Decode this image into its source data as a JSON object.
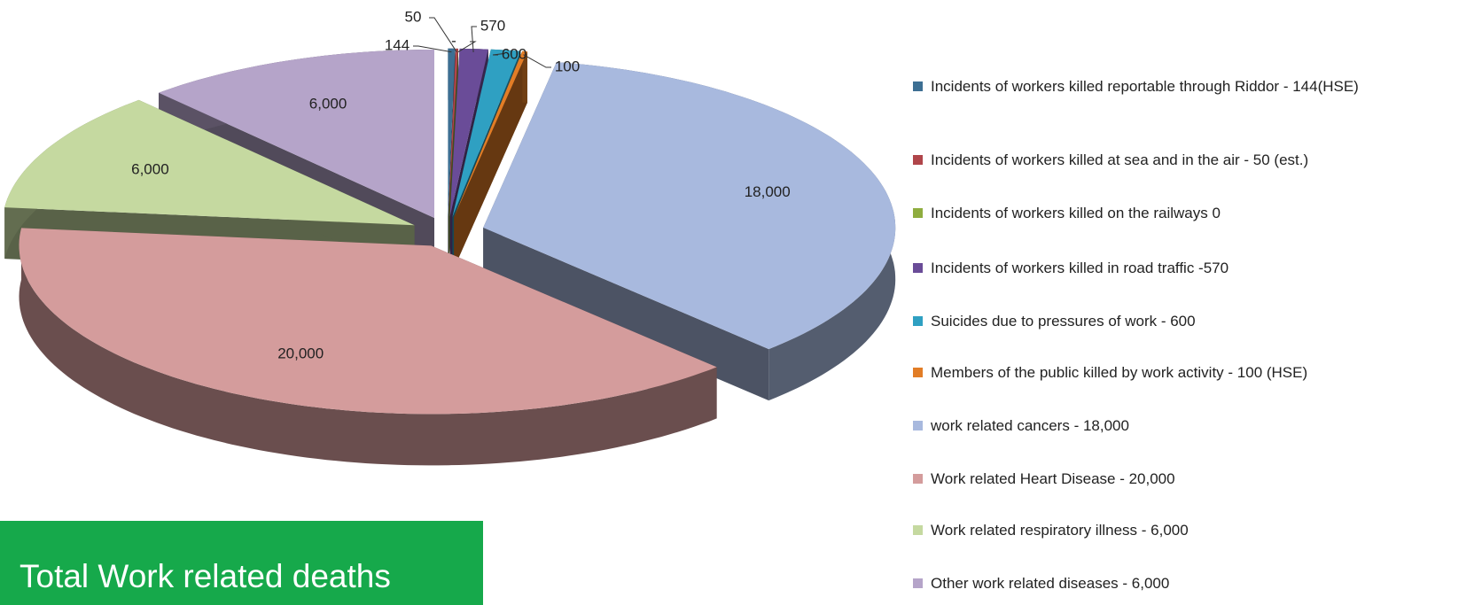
{
  "chart_data": {
    "type": "pie3d",
    "categories": [
      "Incidents of workers killed reportable through Riddor - 144(HSE)",
      "Incidents of workers killed at sea and in the air - 50 (est.)",
      "Incidents of workers killed on the railways 0",
      "Incidents of workers killed in road traffic -570",
      "Suicides due to pressures of work - 600",
      "Members of the public killed by work activity - 100 (HSE)",
      "work related cancers - 18,000",
      "Work related Heart Disease - 20,000",
      "Work related respiratory illness - 6,000",
      "Other work related diseases - 6,000"
    ],
    "values": [
      144,
      50,
      0,
      570,
      600,
      100,
      18000,
      20000,
      6000,
      6000
    ],
    "value_labels": [
      "144",
      "50",
      "-",
      "570",
      "600",
      "100",
      "18,000",
      "20,000",
      "6,000",
      "6,000"
    ],
    "colors": [
      "#3d6f93",
      "#b0454a",
      "#8fad3f",
      "#6a4c98",
      "#2fa0c2",
      "#e27d26",
      "#a8b9de",
      "#d49c9c",
      "#c5d9a0",
      "#b5a4c9"
    ],
    "legend": "right",
    "annotation": "Total Work related deaths"
  }
}
